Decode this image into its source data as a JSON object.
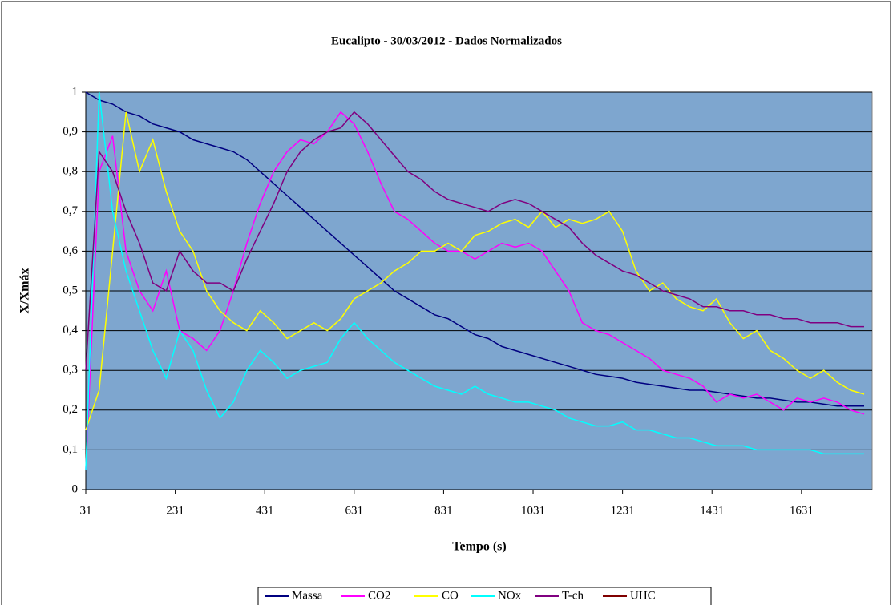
{
  "chart_data": {
    "type": "line",
    "title": "Eucalipto - 30/03/2012 - Dados Normalizados",
    "x_label": "Tempo (s)",
    "y_label": "X/Xmáx",
    "x": [
      31,
      61,
      91,
      121,
      151,
      181,
      211,
      241,
      271,
      301,
      331,
      361,
      391,
      421,
      451,
      481,
      511,
      541,
      571,
      601,
      631,
      661,
      691,
      721,
      751,
      781,
      811,
      841,
      871,
      901,
      931,
      961,
      991,
      1021,
      1051,
      1081,
      1111,
      1141,
      1171,
      1201,
      1231,
      1261,
      1291,
      1321,
      1351,
      1381,
      1411,
      1441,
      1471,
      1501,
      1531,
      1561,
      1591,
      1621,
      1651,
      1681,
      1711,
      1741,
      1771
    ],
    "xlim": [
      31,
      1789
    ],
    "xticks": [
      31,
      231,
      431,
      631,
      831,
      1031,
      1231,
      1431,
      1631
    ],
    "ylim": [
      0,
      1
    ],
    "yticks": [
      0,
      {
        "value": 0.1,
        "label": "0,1"
      },
      {
        "value": 0.2,
        "label": "0,2"
      },
      {
        "value": 0.3,
        "label": "0,3"
      },
      {
        "value": 0.4,
        "label": "0,4"
      },
      {
        "value": 0.5,
        "label": "0,5"
      },
      {
        "value": 0.6,
        "label": "0,6"
      },
      {
        "value": 0.7,
        "label": "0,7"
      },
      {
        "value": 0.8,
        "label": "0,8"
      },
      {
        "value": 0.9,
        "label": "0,9"
      },
      1
    ],
    "grid": true,
    "legend": "bottom",
    "series": [
      {
        "name": "Massa",
        "color": "#000080",
        "values": [
          1.0,
          0.98,
          0.97,
          0.95,
          0.94,
          0.92,
          0.91,
          0.9,
          0.88,
          0.87,
          0.86,
          0.85,
          0.83,
          0.8,
          0.77,
          0.74,
          0.71,
          0.68,
          0.65,
          0.62,
          0.59,
          0.56,
          0.53,
          0.5,
          0.48,
          0.46,
          0.44,
          0.43,
          0.41,
          0.39,
          0.38,
          0.36,
          0.35,
          0.34,
          0.33,
          0.32,
          0.31,
          0.3,
          0.29,
          0.285,
          0.28,
          0.27,
          0.265,
          0.26,
          0.255,
          0.25,
          0.25,
          0.245,
          0.24,
          0.235,
          0.23,
          0.23,
          0.225,
          0.22,
          0.22,
          0.215,
          0.21,
          0.21,
          0.21
        ]
      },
      {
        "name": "CO2",
        "color": "#ff00ff",
        "values": [
          0.05,
          0.8,
          0.89,
          0.6,
          0.5,
          0.45,
          0.55,
          0.4,
          0.38,
          0.35,
          0.4,
          0.5,
          0.62,
          0.72,
          0.8,
          0.85,
          0.88,
          0.87,
          0.9,
          0.95,
          0.92,
          0.85,
          0.77,
          0.7,
          0.68,
          0.65,
          0.62,
          0.6,
          0.6,
          0.58,
          0.6,
          0.62,
          0.61,
          0.62,
          0.6,
          0.55,
          0.5,
          0.42,
          0.4,
          0.39,
          0.37,
          0.35,
          0.33,
          0.3,
          0.29,
          0.28,
          0.26,
          0.22,
          0.24,
          0.23,
          0.24,
          0.22,
          0.2,
          0.23,
          0.22,
          0.23,
          0.22,
          0.2,
          0.19
        ]
      },
      {
        "name": "CO",
        "color": "#ffff00",
        "values": [
          0.15,
          0.25,
          0.6,
          0.95,
          0.8,
          0.88,
          0.75,
          0.65,
          0.6,
          0.5,
          0.45,
          0.42,
          0.4,
          0.45,
          0.42,
          0.38,
          0.4,
          0.42,
          0.4,
          0.43,
          0.48,
          0.5,
          0.52,
          0.55,
          0.57,
          0.6,
          0.6,
          0.62,
          0.6,
          0.64,
          0.65,
          0.67,
          0.68,
          0.66,
          0.7,
          0.66,
          0.68,
          0.67,
          0.68,
          0.7,
          0.65,
          0.55,
          0.5,
          0.52,
          0.48,
          0.46,
          0.45,
          0.48,
          0.42,
          0.38,
          0.4,
          0.35,
          0.33,
          0.3,
          0.28,
          0.3,
          0.27,
          0.25,
          0.24
        ]
      },
      {
        "name": "NOx",
        "color": "#00ffff",
        "values": [
          0.05,
          1.0,
          0.7,
          0.55,
          0.45,
          0.35,
          0.28,
          0.4,
          0.35,
          0.25,
          0.18,
          0.22,
          0.3,
          0.35,
          0.32,
          0.28,
          0.3,
          0.31,
          0.32,
          0.38,
          0.42,
          0.38,
          0.35,
          0.32,
          0.3,
          0.28,
          0.26,
          0.25,
          0.24,
          0.26,
          0.24,
          0.23,
          0.22,
          0.22,
          0.21,
          0.2,
          0.18,
          0.17,
          0.16,
          0.16,
          0.17,
          0.15,
          0.15,
          0.14,
          0.13,
          0.13,
          0.12,
          0.11,
          0.11,
          0.11,
          0.1,
          0.1,
          0.1,
          0.1,
          0.1,
          0.09,
          0.09,
          0.09,
          0.09
        ]
      },
      {
        "name": "T-ch",
        "color": "#800080",
        "values": [
          0.3,
          0.85,
          0.8,
          0.7,
          0.62,
          0.52,
          0.5,
          0.6,
          0.55,
          0.52,
          0.52,
          0.5,
          0.58,
          0.65,
          0.72,
          0.8,
          0.85,
          0.88,
          0.9,
          0.91,
          0.95,
          0.92,
          0.88,
          0.84,
          0.8,
          0.78,
          0.75,
          0.73,
          0.72,
          0.71,
          0.7,
          0.72,
          0.73,
          0.72,
          0.7,
          0.68,
          0.66,
          0.62,
          0.59,
          0.57,
          0.55,
          0.54,
          0.52,
          0.5,
          0.49,
          0.48,
          0.46,
          0.46,
          0.45,
          0.45,
          0.44,
          0.44,
          0.43,
          0.43,
          0.42,
          0.42,
          0.42,
          0.41,
          0.41
        ]
      },
      {
        "name": "UHC",
        "color": "#800000",
        "values": [
          null,
          null,
          null,
          null,
          null,
          null,
          null,
          null,
          null,
          null,
          null,
          null,
          null,
          null,
          null,
          null,
          null,
          null,
          null,
          null,
          null,
          null,
          null,
          null,
          null,
          null,
          null,
          null,
          null,
          null,
          null,
          null,
          null,
          null,
          null,
          null,
          null,
          null,
          null,
          null,
          null,
          null,
          null,
          null,
          null,
          null,
          null,
          null,
          null,
          null,
          null,
          null,
          null,
          null,
          null,
          null,
          null,
          null,
          null
        ]
      }
    ]
  }
}
